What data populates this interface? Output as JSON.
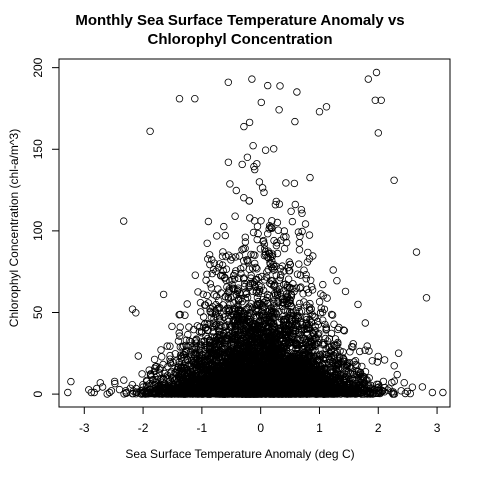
{
  "chart_data": {
    "type": "scatter",
    "title_lines": [
      "Monthly Sea Surface Temperature Anomaly vs",
      "Chlorophyl Concentration"
    ],
    "xlabel": "Sea Surface Temperature Anomaly (deg C)",
    "ylabel": "Chlorophyl Concentration (chl-a/m^3)",
    "xlim": [
      -3.43,
      3.22
    ],
    "ylim": [
      -7.9,
      205.3
    ],
    "x_ticks": [
      -3,
      -2,
      -1,
      0,
      1,
      2,
      3
    ],
    "y_ticks": [
      0,
      50,
      100,
      150,
      200
    ],
    "grid": false,
    "legend": "none",
    "marker": "open-circle",
    "notable_points": [
      {
        "x": 1.97,
        "y": 197
      },
      {
        "x": -0.15,
        "y": 193
      },
      {
        "x": 1.83,
        "y": 193
      },
      {
        "x": -0.55,
        "y": 191
      },
      {
        "x": 0.12,
        "y": 189
      },
      {
        "x": 1.12,
        "y": 176
      },
      {
        "x": -1.38,
        "y": 181
      },
      {
        "x": -1.12,
        "y": 181
      },
      {
        "x": 1.0,
        "y": 173
      },
      {
        "x": 1.95,
        "y": 180
      },
      {
        "x": 2.05,
        "y": 180
      },
      {
        "x": -1.88,
        "y": 161
      },
      {
        "x": 2.0,
        "y": 160
      },
      {
        "x": 2.27,
        "y": 131
      },
      {
        "x": -2.33,
        "y": 106
      },
      {
        "x": 2.65,
        "y": 87
      },
      {
        "x": 2.82,
        "y": 59
      },
      {
        "x": -2.18,
        "y": 52
      },
      {
        "x": -3.28,
        "y": 1
      },
      {
        "x": -2.88,
        "y": 1
      },
      {
        "x": -2.83,
        "y": 1
      },
      {
        "x": -2.57,
        "y": 1
      },
      {
        "x": 2.92,
        "y": 1
      },
      {
        "x": 3.1,
        "y": 1
      }
    ],
    "cloud_model": {
      "n_points": 7000,
      "x_mean": 0.0,
      "x_sd": 0.78,
      "y_rate_center": 28,
      "y_rate_edge": 7,
      "x_min": -3.3,
      "x_max": 3.1,
      "y_max": 200
    }
  }
}
